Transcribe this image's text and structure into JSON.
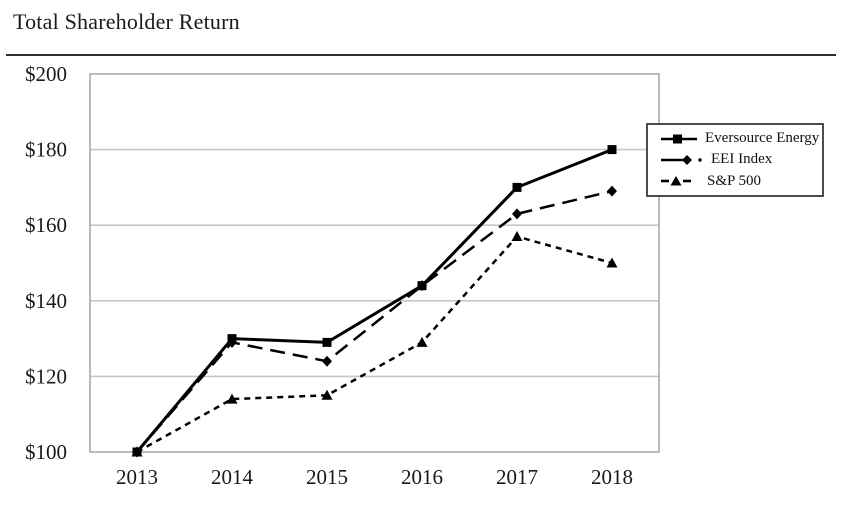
{
  "page": {
    "title": "Total Shareholder Return"
  },
  "chart_data": {
    "type": "line",
    "title": "Total Shareholder Return",
    "categories": [
      "2013",
      "2014",
      "2015",
      "2016",
      "2017",
      "2018"
    ],
    "series": [
      {
        "name": "Eversource Energy",
        "marker": "square",
        "line_style": "solid",
        "values": [
          100,
          130,
          129,
          144,
          170,
          180
        ]
      },
      {
        "name": "EEI Index",
        "marker": "diamond",
        "line_style": "long-dash",
        "values": [
          100,
          129,
          124,
          144,
          163,
          169
        ]
      },
      {
        "name": "S&P 500",
        "marker": "triangle",
        "line_style": "short-dash",
        "values": [
          100,
          114,
          115,
          129,
          157,
          150
        ]
      }
    ],
    "y_ticks": [
      {
        "value": 100,
        "label": "$100"
      },
      {
        "value": 120,
        "label": "$120"
      },
      {
        "value": 140,
        "label": "$140"
      },
      {
        "value": 160,
        "label": "$160"
      },
      {
        "value": 180,
        "label": "$180"
      },
      {
        "value": 200,
        "label": "$200"
      }
    ],
    "ylim": [
      100,
      200
    ],
    "grid": "horizontal",
    "legend_position": "upper-right-inside",
    "colors": {
      "line": "#000000",
      "grid": "#c6c6c6",
      "plot_border": "#9e9e9e",
      "text": "#1a1a1a",
      "legend_border": "#4d4d4d",
      "background": "#ffffff"
    }
  }
}
